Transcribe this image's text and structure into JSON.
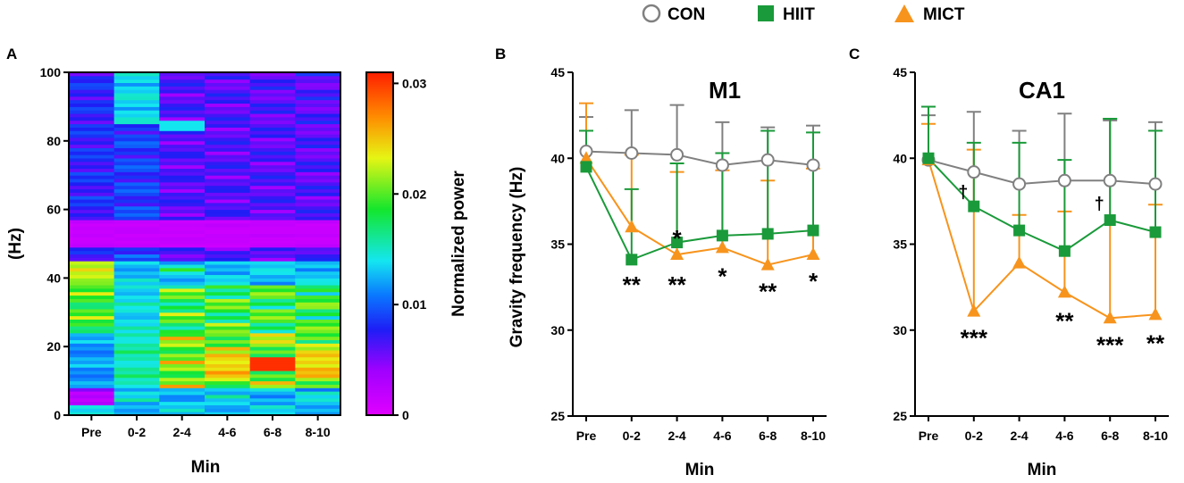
{
  "colors": {
    "con": "#808080",
    "hiit": "#1a9a3a",
    "mict": "#f7941d"
  },
  "legend": [
    {
      "label": "CON",
      "marker": "circle",
      "color": "#808080"
    },
    {
      "label": "HIIT",
      "marker": "square",
      "color": "#1a9a3a"
    },
    {
      "label": "MICT",
      "marker": "triangle",
      "color": "#f7941d"
    }
  ],
  "chart_data": [
    {
      "panel": "A",
      "type": "heatmap",
      "title": "",
      "categories": [
        "Pre",
        "0-2",
        "2-4",
        "4-6",
        "6-8",
        "8-10"
      ],
      "xlabel": "Min",
      "ylabel": "(Hz)",
      "ylim": [
        0,
        100
      ],
      "yticks": [
        0,
        20,
        40,
        60,
        80,
        100
      ],
      "colorbar": {
        "label": "Normalized power",
        "range": [
          0,
          0.031
        ],
        "ticks": [
          "0",
          "0.01",
          "0.02",
          "0.03"
        ],
        "tick_values": [
          0,
          0.01,
          0.02,
          0.03
        ]
      }
    },
    {
      "panel": "B",
      "type": "line",
      "title": "M1",
      "categories": [
        "Pre",
        "0-2",
        "2-4",
        "4-6",
        "6-8",
        "8-10"
      ],
      "xlabel": "Min",
      "ylabel": "Gravity frequency (Hz)",
      "ylim": [
        25,
        45
      ],
      "yticks": [
        25,
        30,
        35,
        40,
        45
      ],
      "series": [
        {
          "name": "CON",
          "values": [
            40.4,
            40.3,
            40.2,
            39.6,
            39.9,
            39.6
          ],
          "err": [
            2.0,
            2.5,
            2.9,
            2.5,
            1.9,
            2.3
          ]
        },
        {
          "name": "HIIT",
          "values": [
            39.5,
            34.1,
            35.1,
            35.5,
            35.6,
            35.8
          ],
          "err": [
            2.1,
            4.1,
            4.6,
            4.8,
            6.0,
            5.7
          ]
        },
        {
          "name": "MICT",
          "values": [
            40.0,
            36.0,
            34.4,
            34.8,
            33.8,
            34.4
          ],
          "err": [
            3.2,
            4.2,
            4.8,
            4.5,
            4.9,
            5.0
          ]
        }
      ],
      "annotations": [
        {
          "text": "**",
          "x": "0-2",
          "y": 33.0
        },
        {
          "text": "*",
          "x": "2-4",
          "y": 35.7
        },
        {
          "text": "**",
          "x": "2-4",
          "y": 33.0
        },
        {
          "text": "*",
          "x": "4-6",
          "y": 33.5
        },
        {
          "text": "**",
          "x": "6-8",
          "y": 32.6
        },
        {
          "text": "*",
          "x": "8-10",
          "y": 33.2
        }
      ]
    },
    {
      "panel": "C",
      "type": "line",
      "title": "CA1",
      "categories": [
        "Pre",
        "0-2",
        "2-4",
        "4-6",
        "6-8",
        "8-10"
      ],
      "xlabel": "Min",
      "ylabel": "",
      "ylim": [
        25,
        45
      ],
      "yticks": [
        25,
        30,
        35,
        40,
        45
      ],
      "series": [
        {
          "name": "CON",
          "values": [
            39.9,
            39.2,
            38.5,
            38.7,
            38.7,
            38.5
          ],
          "err": [
            2.6,
            3.5,
            3.1,
            3.9,
            3.5,
            3.6
          ]
        },
        {
          "name": "HIIT",
          "values": [
            40.0,
            37.2,
            35.8,
            34.6,
            36.4,
            35.7
          ],
          "err": [
            3.0,
            3.7,
            5.1,
            5.3,
            5.9,
            5.9
          ]
        },
        {
          "name": "MICT",
          "values": [
            39.9,
            31.1,
            33.9,
            32.2,
            30.7,
            30.9
          ],
          "err": [
            2.1,
            9.4,
            2.8,
            4.7,
            11.6,
            6.4
          ]
        }
      ],
      "annotations": [
        {
          "text": "†",
          "x": "0-2",
          "y": 38.0,
          "dx": -12
        },
        {
          "text": "***",
          "x": "0-2",
          "y": 29.9
        },
        {
          "text": "**",
          "x": "4-6",
          "y": 30.9
        },
        {
          "text": "†",
          "x": "6-8",
          "y": 37.3,
          "dx": -12
        },
        {
          "text": "***",
          "x": "6-8",
          "y": 29.5
        },
        {
          "text": "**",
          "x": "8-10",
          "y": 29.6
        }
      ]
    }
  ]
}
